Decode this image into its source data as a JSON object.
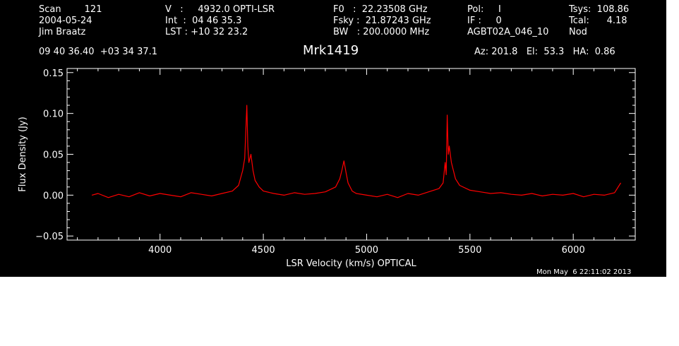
{
  "header": {
    "col1": {
      "line1": "Scan        121",
      "line2": "2004-05-24",
      "line3": "Jim Braatz"
    },
    "col2": {
      "line1": "V   :     4932.0 OPTI-LSR",
      "line2": "Int  :  04 46 35.3",
      "line3": "LST : +10 32 23.2"
    },
    "col3": {
      "line1": "F0   :  22.23508 GHz",
      "line2": "Fsky :  21.87243 GHz",
      "line3": "BW   : 200.0000 MHz"
    },
    "col4": {
      "line1": "Pol:     I",
      "line2": "IF :     0",
      "line3": "AGBT02A_046_10"
    },
    "col5": {
      "line1": "Tsys:  108.86",
      "line2": "Tcal:      4.18",
      "line3": "Nod"
    },
    "coords": "09 40 36.40  +03 34 37.1",
    "source": "Mrk1419",
    "az_el_ha": "Az: 201.8   El:  53.3   HA:  0.86"
  },
  "timestamp": "Mon May  6 22:11:02 2013",
  "chart_data": {
    "type": "line",
    "title": "Mrk1419",
    "xlabel": "LSR Velocity (km/s) OPTICAL",
    "ylabel": "Flux Density (Jy)",
    "xlim": [
      3550,
      6300
    ],
    "ylim": [
      -0.055,
      0.155
    ],
    "x_ticks": [
      4000,
      4500,
      5000,
      5500,
      6000
    ],
    "x_tick_labels": [
      "4000",
      "4500",
      "5000",
      "5500",
      "6000"
    ],
    "y_ticks": [
      -0.05,
      0.0,
      0.05,
      0.1,
      0.15
    ],
    "y_tick_labels": [
      "−0.05",
      "0.00",
      "0.05",
      "0.10",
      "0.15"
    ],
    "grid": false,
    "colors": {
      "background": "#000000",
      "axes": "#ffffff",
      "series": "#ff0000"
    },
    "series": [
      {
        "x": [
          3670,
          3700,
          3750,
          3800,
          3850,
          3900,
          3950,
          4000,
          4050,
          4100,
          4150,
          4200,
          4250,
          4300,
          4350,
          4380,
          4400,
          4410,
          4420,
          4425,
          4430,
          4440,
          4450,
          4460,
          4480,
          4500,
          4550,
          4600,
          4650,
          4700,
          4750,
          4800,
          4850,
          4870,
          4880,
          4890,
          4900,
          4910,
          4930,
          4950,
          5000,
          5050,
          5100,
          5150,
          5200,
          5250,
          5300,
          5350,
          5370,
          5380,
          5385,
          5390,
          5395,
          5400,
          5410,
          5420,
          5430,
          5450,
          5500,
          5550,
          5600,
          5650,
          5700,
          5750,
          5800,
          5850,
          5900,
          5950,
          6000,
          6050,
          6100,
          6150,
          6200,
          6230
        ],
        "y": [
          0.0,
          0.002,
          -0.003,
          0.001,
          -0.002,
          0.003,
          -0.001,
          0.002,
          0.0,
          -0.002,
          0.003,
          0.001,
          -0.001,
          0.002,
          0.005,
          0.012,
          0.03,
          0.045,
          0.11,
          0.06,
          0.04,
          0.05,
          0.03,
          0.018,
          0.01,
          0.005,
          0.002,
          0.0,
          0.003,
          0.001,
          0.002,
          0.004,
          0.01,
          0.02,
          0.03,
          0.042,
          0.028,
          0.015,
          0.005,
          0.002,
          0.0,
          -0.002,
          0.001,
          -0.003,
          0.002,
          0.0,
          0.004,
          0.008,
          0.015,
          0.04,
          0.025,
          0.098,
          0.05,
          0.06,
          0.04,
          0.03,
          0.02,
          0.012,
          0.006,
          0.004,
          0.002,
          0.003,
          0.001,
          0.0,
          0.002,
          -0.001,
          0.001,
          0.0,
          0.002,
          -0.002,
          0.001,
          0.0,
          0.003,
          0.015
        ]
      }
    ]
  }
}
